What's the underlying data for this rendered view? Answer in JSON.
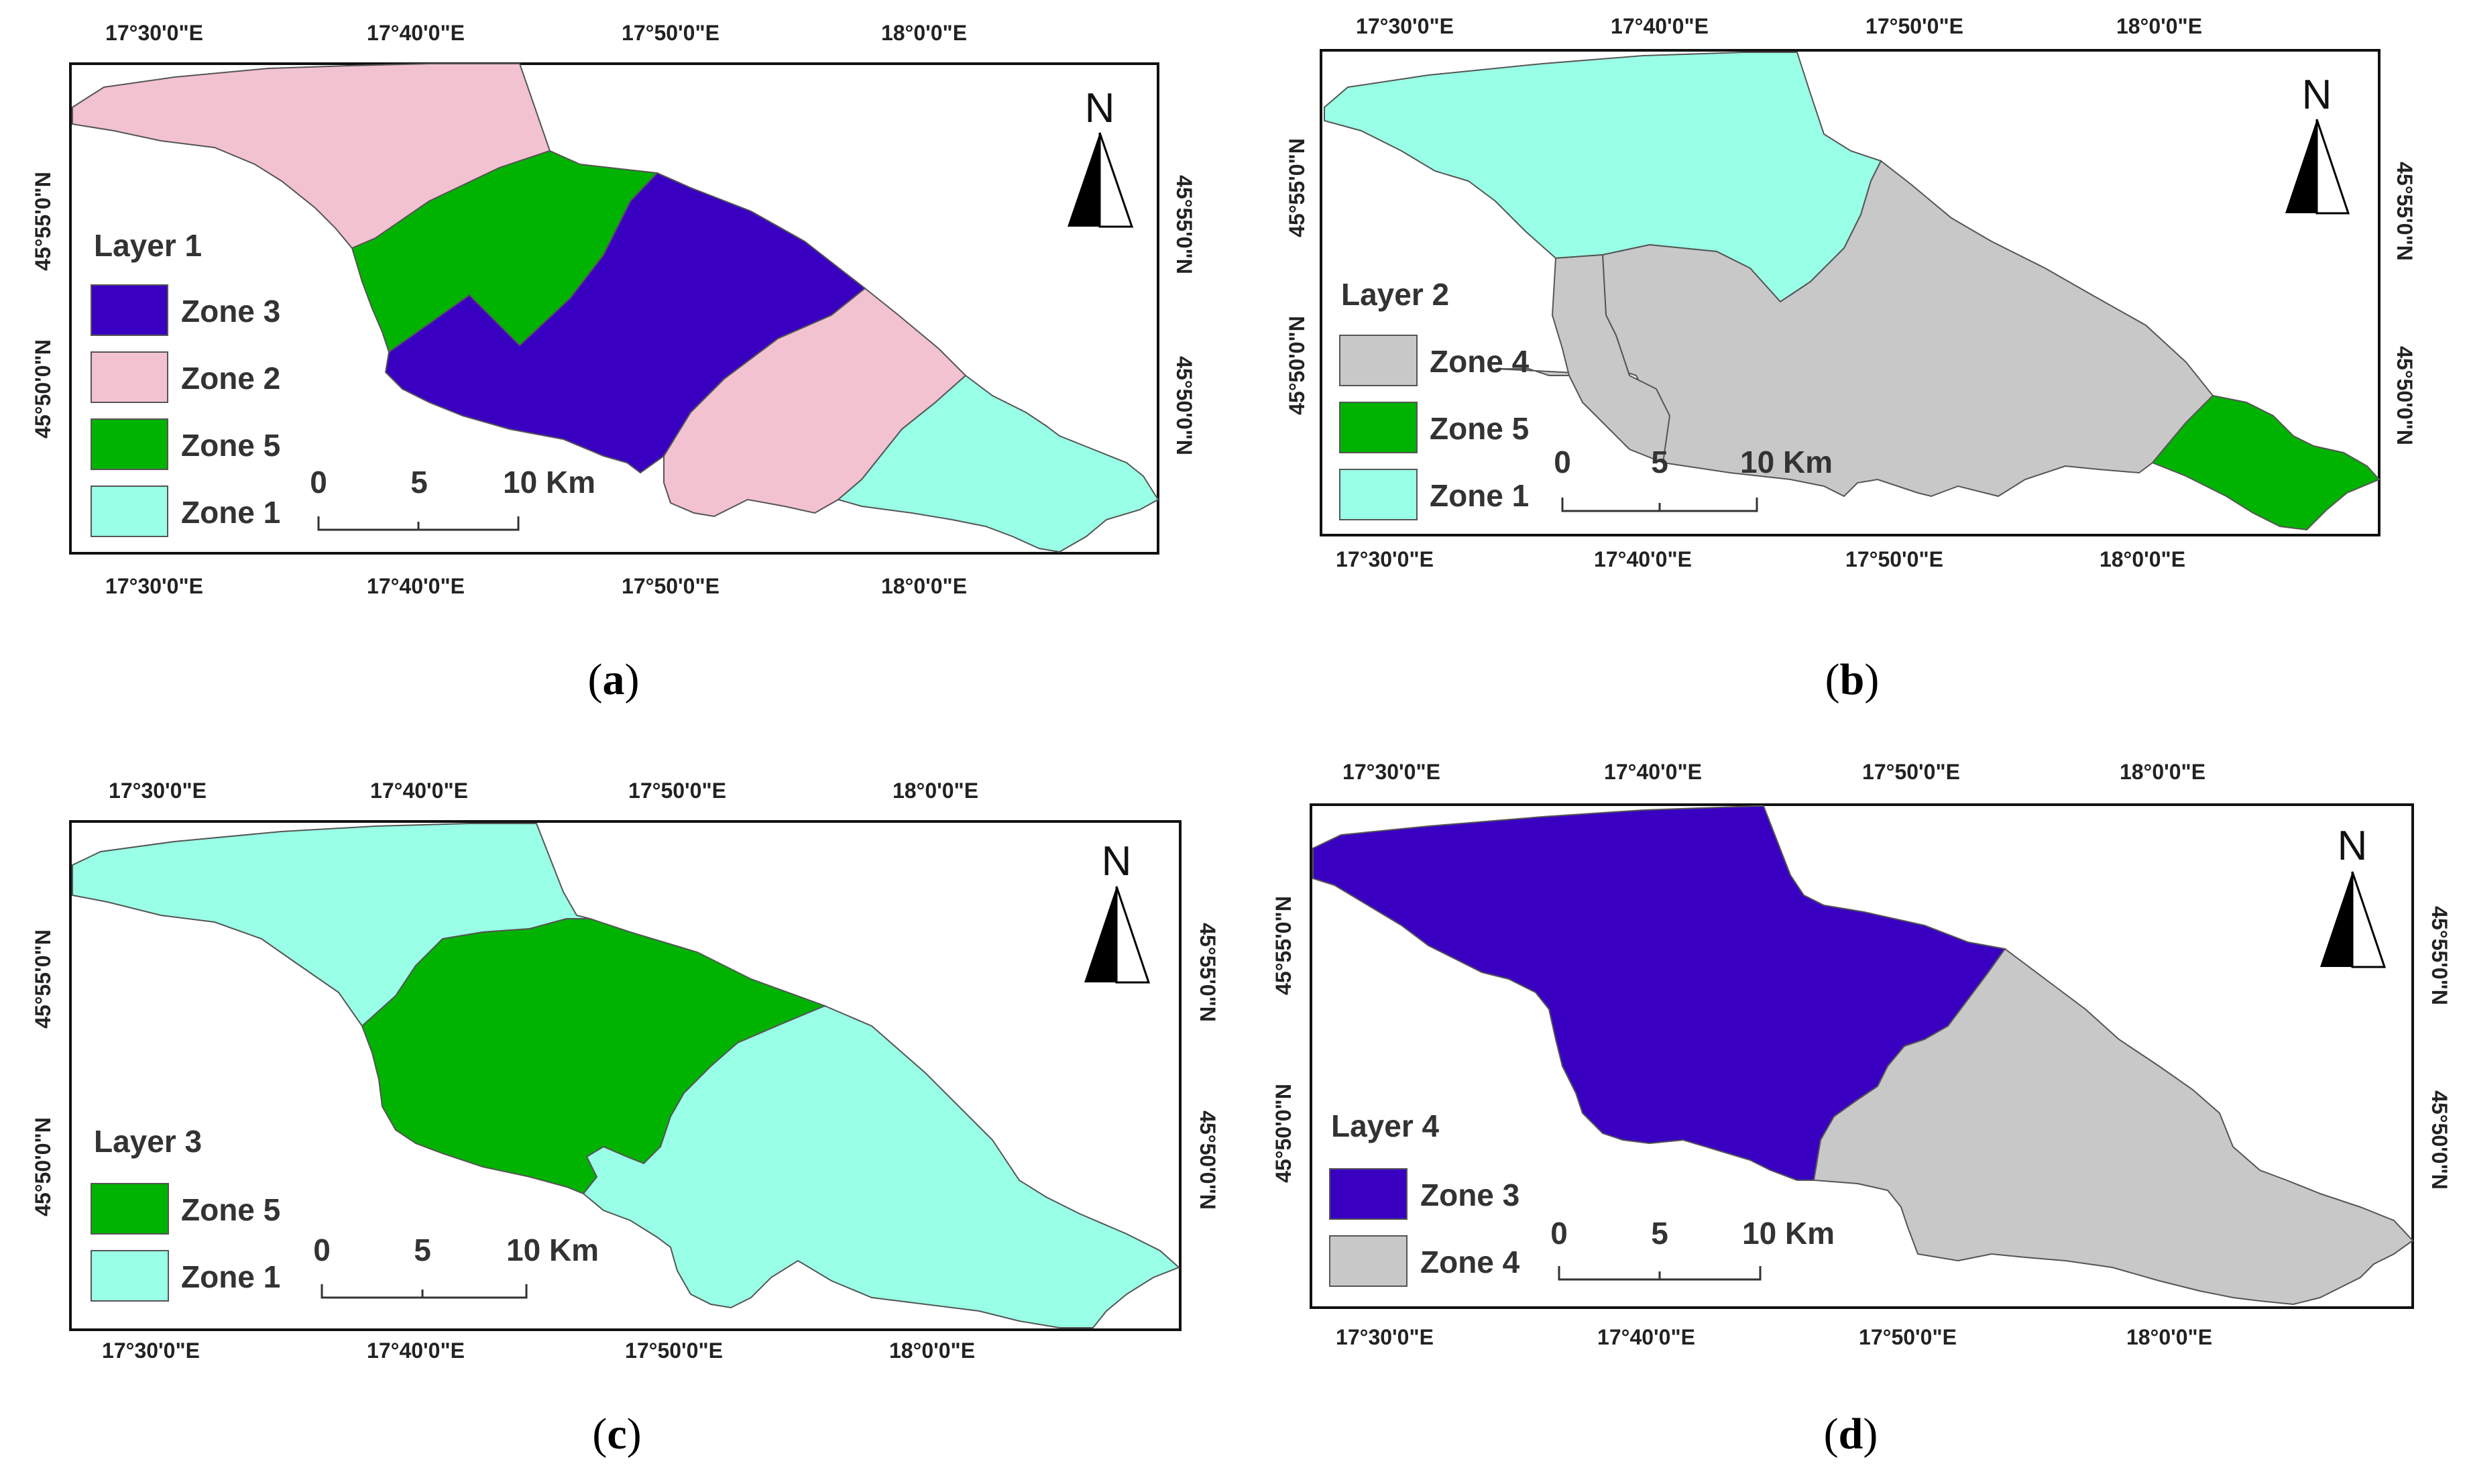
{
  "figure": {
    "panels": [
      {
        "id": "a",
        "caption_open": "(",
        "caption_letter": "a",
        "caption_close": ")",
        "legend_title": "Layer 1",
        "legend": [
          {
            "label": "Zone 3",
            "color": "#3a00c2"
          },
          {
            "label": "Zone 2",
            "color": "#f2c2d0"
          },
          {
            "label": "Zone 5",
            "color": "#00b300"
          },
          {
            "label": "Zone 1",
            "color": "#99ffe6"
          }
        ],
        "lon_ticks_top": [
          "17°30'0\"E",
          "17°40'0\"E",
          "17°50'0\"E",
          "18°0'0\"E"
        ],
        "lon_ticks_bottom": [
          "17°30'0\"E",
          "17°40'0\"E",
          "17°50'0\"E",
          "18°0'0\"E"
        ],
        "lat_ticks_left": [
          "45°55'0\"N",
          "45°50'0\"N"
        ],
        "lat_ticks_right": [
          "45°55'0\"N",
          "45°50'0\"N"
        ],
        "north_label": "N",
        "scale_labels": [
          "0",
          "5",
          "10 Km"
        ]
      },
      {
        "id": "b",
        "caption_open": "(",
        "caption_letter": "b",
        "caption_close": ")",
        "legend_title": "Layer 2",
        "legend": [
          {
            "label": "Zone 4",
            "color": "#c8c8c8"
          },
          {
            "label": "Zone 5",
            "color": "#00b300"
          },
          {
            "label": "Zone 1",
            "color": "#99ffe6"
          }
        ],
        "lon_ticks_top": [
          "17°30'0\"E",
          "17°40'0\"E",
          "17°50'0\"E",
          "18°0'0\"E"
        ],
        "lon_ticks_bottom": [
          "17°30'0\"E",
          "17°40'0\"E",
          "17°50'0\"E",
          "18°0'0\"E"
        ],
        "lat_ticks_left": [
          "45°55'0\"N",
          "45°50'0\"N"
        ],
        "lat_ticks_right": [
          "45°55'0\"N",
          "45°50'0\"N"
        ],
        "north_label": "N",
        "scale_labels": [
          "0",
          "5",
          "10 Km"
        ]
      },
      {
        "id": "c",
        "caption_open": "(",
        "caption_letter": "c",
        "caption_close": ")",
        "legend_title": "Layer 3",
        "legend": [
          {
            "label": "Zone 5",
            "color": "#00b300"
          },
          {
            "label": "Zone 1",
            "color": "#99ffe6"
          }
        ],
        "lon_ticks_top": [
          "17°30'0\"E",
          "17°40'0\"E",
          "17°50'0\"E",
          "18°0'0\"E"
        ],
        "lon_ticks_bottom": [
          "17°30'0\"E",
          "17°40'0\"E",
          "17°50'0\"E",
          "18°0'0\"E"
        ],
        "lat_ticks_left": [
          "45°55'0\"N",
          "45°50'0\"N"
        ],
        "lat_ticks_right": [
          "45°55'0\"N",
          "45°50'0\"N"
        ],
        "north_label": "N",
        "scale_labels": [
          "0",
          "5",
          "10 Km"
        ]
      },
      {
        "id": "d",
        "caption_open": "(",
        "caption_letter": "d",
        "caption_close": ")",
        "legend_title": "Layer 4",
        "legend": [
          {
            "label": "Zone 3",
            "color": "#3a00c2"
          },
          {
            "label": "Zone 4",
            "color": "#c8c8c8"
          }
        ],
        "lon_ticks_top": [
          "17°30'0\"E",
          "17°40'0\"E",
          "17°50'0\"E",
          "18°0'0\"E"
        ],
        "lon_ticks_bottom": [
          "17°30'0\"E",
          "17°40'0\"E",
          "17°50'0\"E",
          "18°0'0\"E"
        ],
        "lat_ticks_left": [
          "45°55'0\"N",
          "45°50'0\"N"
        ],
        "lat_ticks_right": [
          "45°55'0\"N",
          "45°50'0\"N"
        ],
        "north_label": "N",
        "scale_labels": [
          "0",
          "5",
          "10 Km"
        ]
      }
    ]
  }
}
